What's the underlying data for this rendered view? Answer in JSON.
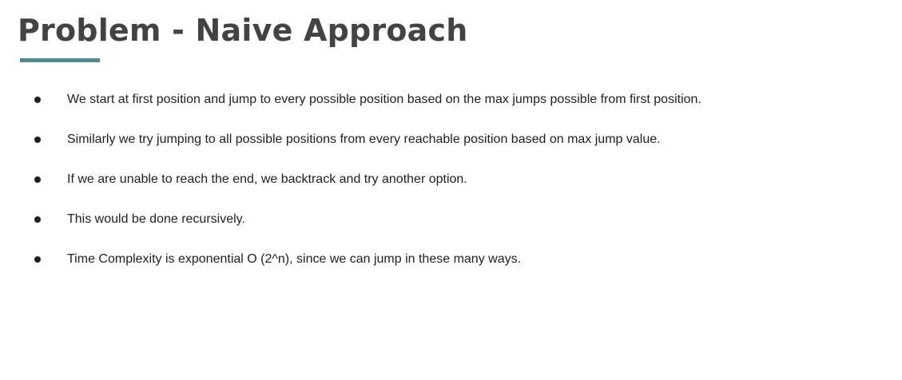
{
  "slide": {
    "title": "Problem - Naive Approach",
    "accent_color": "#4b8a96",
    "bullets": [
      {
        "text": "We start at first position and jump to every possible position based on the max jumps possible from first position."
      },
      {
        "text": "Similarly we try jumping to all possible positions from every reachable position based on max jump value."
      },
      {
        "text": "If we are unable to reach the end, we backtrack and try another option."
      },
      {
        "text": "This would be done recursively."
      },
      {
        "text": "Time Complexity is exponential O (2^n), since we can jump in these many ways."
      }
    ]
  }
}
